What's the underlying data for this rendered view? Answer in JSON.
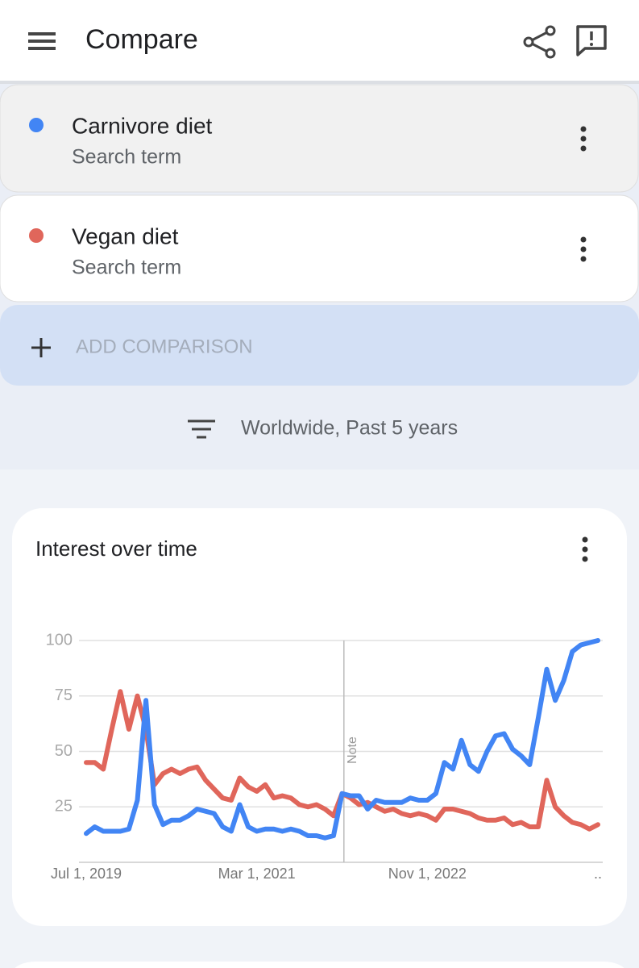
{
  "header": {
    "title": "Compare"
  },
  "search_terms": [
    {
      "name": "Carnivore diet",
      "label": "Search term",
      "color": "#4285f4"
    },
    {
      "name": "Vegan diet",
      "label": "Search term",
      "color": "#e0665b"
    }
  ],
  "add_comparison": "ADD COMPARISON",
  "filter": "Worldwide, Past 5 years",
  "chart_data": {
    "type": "line",
    "title": "Interest over time",
    "note": "Note",
    "categories": [
      "Jul 1, 2019",
      null,
      null,
      null,
      null,
      null,
      null,
      null,
      null,
      null,
      null,
      null,
      null,
      null,
      null,
      null,
      null,
      null,
      null,
      null,
      "Mar 1, 2021",
      null,
      null,
      null,
      null,
      null,
      null,
      null,
      null,
      null,
      null,
      null,
      null,
      null,
      null,
      null,
      null,
      null,
      null,
      null,
      "Nov 1, 2022",
      null,
      null,
      null,
      null,
      null,
      null,
      null,
      null,
      null,
      null,
      null,
      null,
      null,
      null,
      null,
      null,
      null,
      null,
      null,
      ".."
    ],
    "series": [
      {
        "name": "Carnivore diet",
        "color": "#4285f4",
        "values": [
          13,
          16,
          14,
          14,
          14,
          15,
          28,
          73,
          26,
          17,
          19,
          19,
          21,
          24,
          23,
          22,
          16,
          14,
          26,
          16,
          14,
          15,
          15,
          14,
          15,
          14,
          12,
          12,
          11,
          12,
          31,
          30,
          30,
          24,
          28,
          27,
          27,
          27,
          29,
          28,
          28,
          31,
          45,
          42,
          55,
          44,
          41,
          50,
          57,
          58,
          51,
          48,
          44,
          65,
          87,
          73,
          82,
          95,
          98,
          99,
          100
        ]
      },
      {
        "name": "Vegan diet",
        "color": "#e0665b",
        "values": [
          45,
          45,
          42,
          60,
          77,
          60,
          75,
          60,
          35,
          40,
          42,
          40,
          42,
          43,
          37,
          33,
          29,
          28,
          38,
          34,
          32,
          35,
          29,
          30,
          29,
          26,
          25,
          26,
          24,
          21,
          31,
          29,
          26,
          27,
          25,
          23,
          24,
          22,
          21,
          22,
          21,
          19,
          24,
          24,
          23,
          22,
          20,
          19,
          19,
          20,
          17,
          18,
          16,
          16,
          37,
          25,
          21,
          18,
          17,
          15,
          17
        ]
      }
    ],
    "ylim": [
      0,
      100
    ],
    "yticks": [
      25,
      50,
      75,
      100
    ],
    "grid": true
  }
}
